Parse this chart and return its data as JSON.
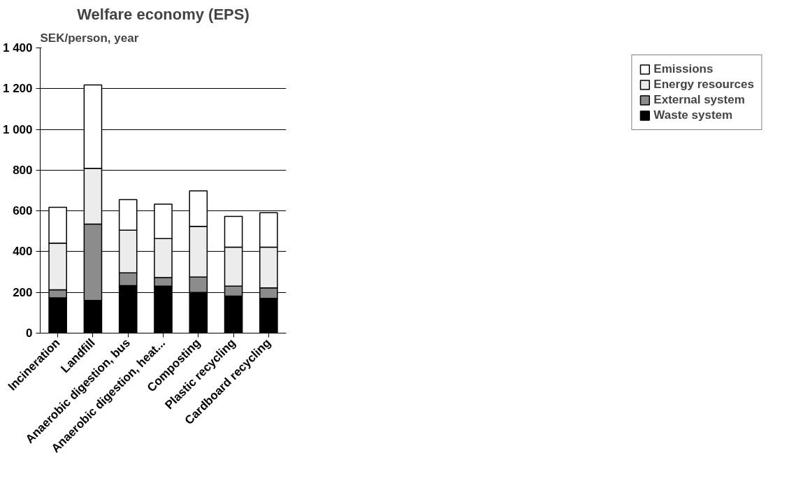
{
  "chart_data": {
    "type": "bar",
    "stacked": true,
    "title": "Welfare economy (EPS)",
    "ylabel": "SEK/person, year",
    "categories": [
      "Incineration",
      "Landfill",
      "Anaerobic digestion, bus",
      "Anaerobic digestion, heat...",
      "Composting",
      "Plastic recycling",
      "Cardboard recycling"
    ],
    "series": [
      {
        "name": "Waste system",
        "color": "#000000",
        "values": [
          173,
          160,
          233,
          231,
          200,
          182,
          171
        ]
      },
      {
        "name": "External system",
        "color": "#8c8c8c",
        "values": [
          40,
          375,
          63,
          42,
          75,
          49,
          51
        ]
      },
      {
        "name": "Energy resources",
        "color": "#ececec",
        "values": [
          229,
          274,
          209,
          191,
          249,
          191,
          200
        ]
      },
      {
        "name": "Emissions",
        "color": "#ffffff",
        "values": [
          176,
          409,
          150,
          169,
          174,
          151,
          169
        ]
      }
    ],
    "ylim": [
      0,
      1400
    ],
    "yticks": [
      0,
      200,
      400,
      600,
      800,
      {
        "value": 1000,
        "label": "1 000"
      },
      {
        "value": 1200,
        "label": "1 200"
      },
      {
        "value": 1400,
        "label": "1 400"
      }
    ],
    "grid": "y",
    "legend": "right"
  }
}
